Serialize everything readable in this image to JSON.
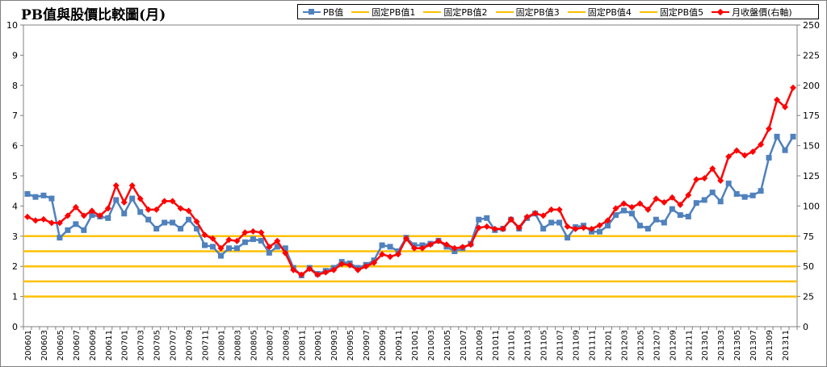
{
  "title": "PB值與股價比較圖(月)",
  "legend": [
    {
      "label": "PB值",
      "color": "#4F81BD",
      "marker": "square"
    },
    {
      "label": "固定PB值1",
      "color": "#FFC000",
      "marker": "none"
    },
    {
      "label": "固定PB值2",
      "color": "#FFC000",
      "marker": "none"
    },
    {
      "label": "固定PB值3",
      "color": "#FFC000",
      "marker": "none"
    },
    {
      "label": "固定PB值4",
      "color": "#FFC000",
      "marker": "none"
    },
    {
      "label": "固定PB值5",
      "color": "#FFC000",
      "marker": "none"
    },
    {
      "label": "月收盤價(右軸)",
      "color": "#FF0000",
      "marker": "diamond"
    }
  ],
  "chart_data": {
    "type": "line",
    "title": "PB值與股價比較圖(月)",
    "y_left": {
      "min": 0,
      "max": 10,
      "ticks": [
        "0",
        "1",
        "2",
        "3",
        "4",
        "5",
        "6",
        "7",
        "8",
        "9",
        "10"
      ]
    },
    "y_right": {
      "min": 0,
      "max": 250,
      "ticks": [
        "0",
        "25",
        "50",
        "75",
        "100",
        "125",
        "150",
        "175",
        "200",
        "225",
        "250"
      ]
    },
    "x_tick_labels": [
      "200601",
      "200603",
      "200605",
      "200607",
      "200609",
      "200611",
      "200701",
      "200703",
      "200705",
      "200707",
      "200709",
      "200711",
      "200801",
      "200803",
      "200805",
      "200807",
      "200809",
      "200811",
      "200901",
      "200903",
      "200905",
      "200907",
      "200909",
      "200911",
      "201001",
      "201003",
      "201005",
      "201007",
      "201009",
      "201011",
      "201101",
      "201103",
      "201105",
      "201107",
      "201109",
      "201111",
      "201201",
      "201203",
      "201205",
      "201207",
      "201209",
      "201211",
      "201301",
      "201303",
      "201305",
      "201307",
      "201309",
      "201311"
    ],
    "fixed_pb_levels": [
      1,
      1.5,
      2,
      2.5,
      3
    ],
    "series": [
      {
        "name": "PB值",
        "axis": "left",
        "color": "#4F81BD",
        "marker": "square",
        "values": [
          4.4,
          4.3,
          4.35,
          4.25,
          2.95,
          3.2,
          3.4,
          3.2,
          3.7,
          3.65,
          3.6,
          4.2,
          3.75,
          4.25,
          3.8,
          3.55,
          3.25,
          3.45,
          3.45,
          3.25,
          3.55,
          3.25,
          2.7,
          2.65,
          2.35,
          2.6,
          2.6,
          2.8,
          2.9,
          2.85,
          2.45,
          2.65,
          2.6,
          1.95,
          1.7,
          1.95,
          1.75,
          1.85,
          1.95,
          2.15,
          2.1,
          1.95,
          2.05,
          2.2,
          2.7,
          2.65,
          2.5,
          2.95,
          2.7,
          2.7,
          2.75,
          2.85,
          2.65,
          2.5,
          2.6,
          2.75,
          3.55,
          3.6,
          3.2,
          3.25,
          3.55,
          3.25,
          3.6,
          3.75,
          3.25,
          3.45,
          3.45,
          2.95,
          3.3,
          3.35,
          3.15,
          3.15,
          3.35,
          3.7,
          3.85,
          3.75,
          3.35,
          3.25,
          3.55,
          3.45,
          3.9,
          3.7,
          3.65,
          4.1,
          4.2,
          4.45,
          4.15,
          4.75,
          4.4,
          4.3,
          4.35,
          4.5,
          5.6,
          6.3,
          5.85,
          6.3
        ]
      },
      {
        "name": "月收盤價(右軸)",
        "axis": "right",
        "color": "#FF0000",
        "marker": "diamond",
        "values": [
          91,
          88,
          89,
          86,
          86,
          92,
          99,
          92,
          96,
          92,
          98,
          117,
          103,
          117,
          106,
          97,
          97,
          104,
          104,
          98,
          96,
          87,
          76,
          73,
          65,
          72,
          71,
          78,
          79,
          78,
          66,
          71,
          61,
          47,
          43,
          48,
          43,
          45,
          47,
          52,
          51,
          47,
          50,
          53,
          60,
          58,
          60,
          73,
          65,
          65,
          68,
          71,
          68,
          65,
          66,
          68,
          82,
          83,
          81,
          81,
          89,
          82,
          91,
          94,
          92,
          97,
          97,
          83,
          81,
          82,
          81,
          84,
          88,
          98,
          102,
          99,
          102,
          97,
          106,
          103,
          107,
          101,
          109,
          122,
          123,
          131,
          121,
          141,
          146,
          142,
          145,
          151,
          164,
          188,
          182,
          198
        ]
      }
    ]
  }
}
